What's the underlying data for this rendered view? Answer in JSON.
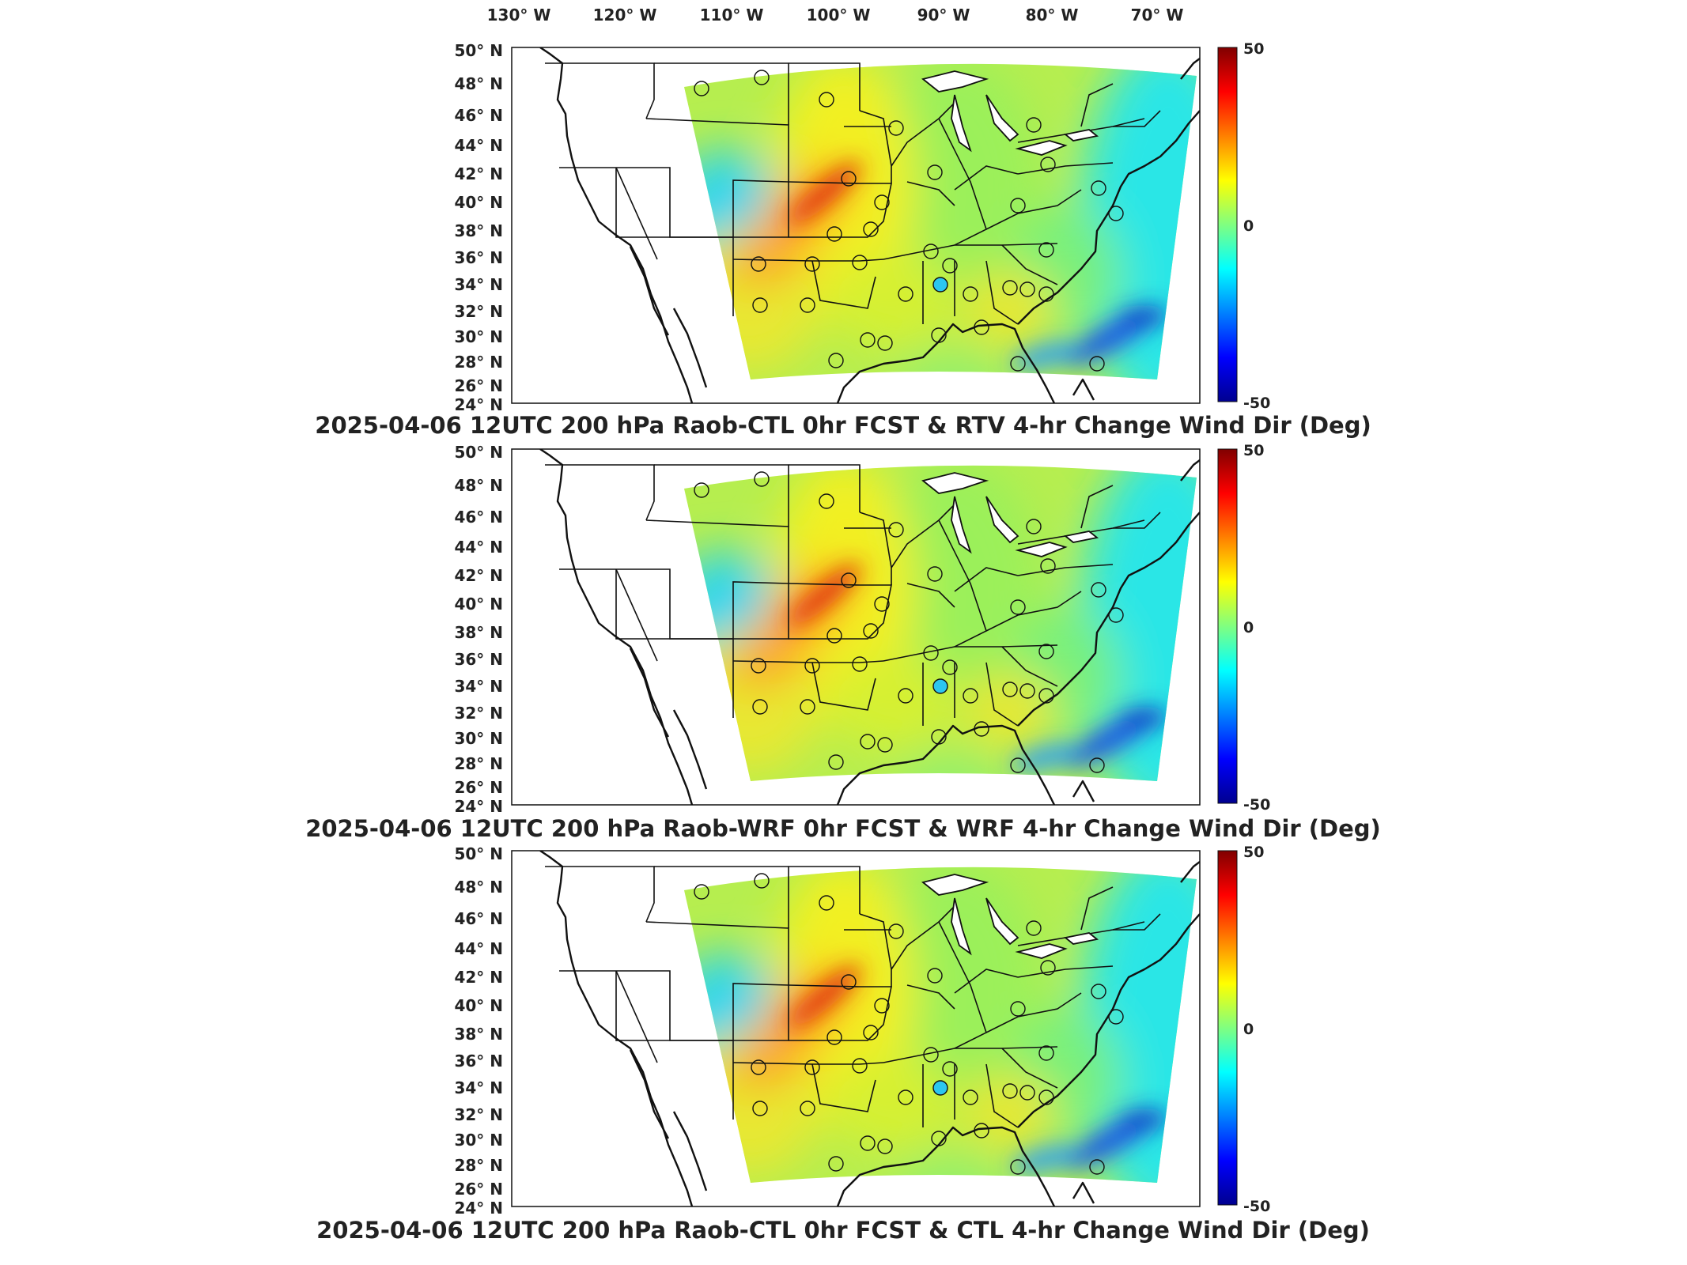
{
  "longitude_labels": [
    "130° W",
    "120° W",
    "110° W",
    "100° W",
    "90° W",
    "80° W",
    "70° W"
  ],
  "latitude_labels": [
    "50° N",
    "48° N",
    "46° N",
    "44° N",
    "42° N",
    "40° N",
    "38° N",
    "36° N",
    "34° N",
    "32° N",
    "30° N",
    "28° N",
    "26° N",
    "24° N"
  ],
  "colorbar": {
    "max_label": "50",
    "mid_label": "0",
    "min_label": "-50"
  },
  "panels": [
    {
      "title": "2025-04-06 12UTC 200 hPa Raob-CTL 0hr FCST & RTV 4-hr Change Wind Dir (Deg)"
    },
    {
      "title": "2025-04-06 12UTC 200 hPa Raob-WRF 0hr FCST & WRF 4-hr Change Wind Dir (Deg)"
    },
    {
      "title": "2025-04-06 12UTC 200 hPa Raob-CTL 0hr FCST & CTL 4-hr Change Wind Dir (Deg)"
    }
  ],
  "colors": {
    "colormap": [
      "#00008f",
      "#0000ff",
      "#0080ff",
      "#00ffff",
      "#80ff80",
      "#ffff00",
      "#ff8000",
      "#ff0000",
      "#800000"
    ]
  },
  "legend_scale": {
    "min": -50,
    "max": 50
  }
}
